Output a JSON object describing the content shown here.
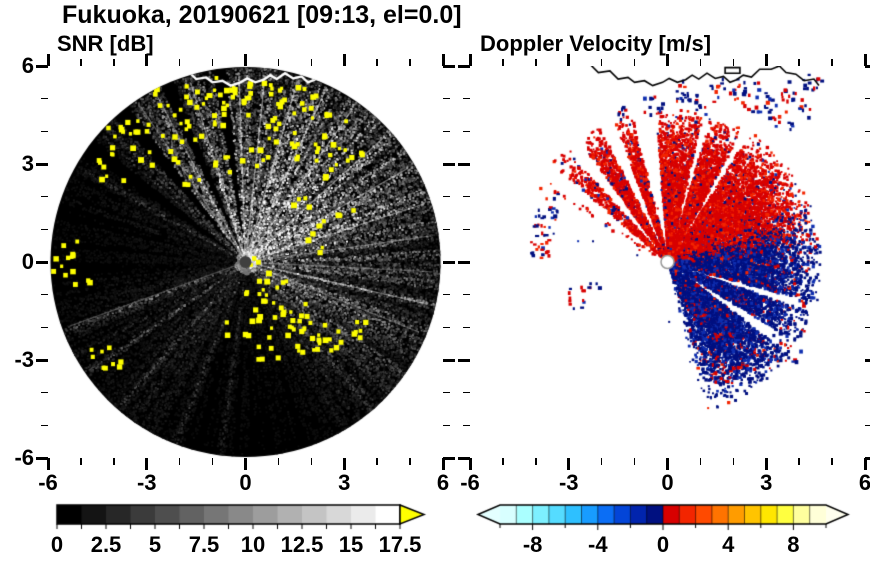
{
  "title": "Fukuoka, 20190621 [09:13, el=0.0]",
  "panels": {
    "snr": {
      "label": "SNR [dB]"
    },
    "velocity": {
      "label": "Doppler Velocity [m/s]"
    }
  },
  "axes": {
    "xlim": [
      -6,
      6
    ],
    "ylim": [
      -6,
      6
    ],
    "xticks": [
      -6,
      -3,
      0,
      3,
      6
    ],
    "yticks": [
      6,
      3,
      0,
      -3,
      -6
    ],
    "minor_step": 1
  },
  "colorbars": {
    "snr": {
      "min": 0,
      "max": 17.5,
      "step": 1.25,
      "tick_values": [
        0,
        2.5,
        5,
        7.5,
        10,
        12.5,
        15,
        17.5
      ],
      "tick_labels": [
        "0",
        "2.5",
        "5",
        "7.5",
        "10",
        "12.5",
        "15",
        "17.5"
      ],
      "color_start": "#000000",
      "color_end": "#ffffff",
      "over_color": "#ffff00"
    },
    "velocity": {
      "min": -10,
      "max": 10,
      "step": 1,
      "tick_values": [
        -8,
        -4,
        0,
        4,
        8
      ],
      "tick_labels": [
        "-8",
        "-4",
        "0",
        "4",
        "8"
      ],
      "colors": [
        "#d8ffff",
        "#aaffff",
        "#7df0ff",
        "#55dcff",
        "#2ec0ff",
        "#189cff",
        "#0b6ef5",
        "#0345d8",
        "#0124ad",
        "#001080",
        "#d80000",
        "#f32500",
        "#ff4a00",
        "#ff7300",
        "#ff9c00",
        "#ffc400",
        "#ffe600",
        "#ffff40",
        "#ffff9e",
        "#ffffd8"
      ],
      "under_color": "#e4ffff",
      "over_color": "#ffffee"
    }
  },
  "coastline": {
    "points": [
      [
        -2.35,
        6.05
      ],
      [
        -2.1,
        5.8
      ],
      [
        -1.75,
        5.85
      ],
      [
        -1.5,
        5.6
      ],
      [
        -1.2,
        5.65
      ],
      [
        -1.0,
        5.5
      ],
      [
        -0.7,
        5.55
      ],
      [
        -0.45,
        5.4
      ],
      [
        -0.15,
        5.5
      ],
      [
        0.05,
        5.62
      ],
      [
        0.3,
        5.5
      ],
      [
        0.55,
        5.58
      ],
      [
        0.75,
        5.72
      ],
      [
        0.95,
        5.6
      ],
      [
        1.2,
        5.78
      ],
      [
        1.45,
        5.62
      ],
      [
        1.7,
        5.68
      ],
      [
        1.9,
        5.5
      ],
      [
        2.1,
        5.58
      ],
      [
        2.3,
        5.72
      ],
      [
        2.55,
        5.66
      ],
      [
        2.8,
        5.9
      ],
      [
        3.15,
        5.9
      ],
      [
        3.4,
        6.0
      ],
      [
        3.6,
        5.8
      ],
      [
        3.9,
        5.75
      ],
      [
        4.15,
        5.55
      ],
      [
        4.45,
        5.6
      ],
      [
        4.6,
        5.4
      ]
    ],
    "island": [
      [
        1.75,
        5.95
      ],
      [
        2.2,
        5.95
      ],
      [
        2.2,
        5.78
      ],
      [
        1.75,
        5.78
      ]
    ]
  },
  "chart_data": [
    {
      "type": "heatmap",
      "name": "snr",
      "title": "SNR [dB]",
      "units": "dB",
      "xlim": [
        -6,
        6
      ],
      "ylim": [
        -6,
        6
      ],
      "xticks": [
        -6,
        -3,
        0,
        3,
        6
      ],
      "yticks": [
        -6,
        -3,
        0,
        3,
        6
      ],
      "scale": {
        "min": 0,
        "max": 17.5,
        "label_interval": 2.5,
        "colormap": "black-to-white",
        "over_color": "#ffff00"
      },
      "radar_disk": {
        "center": [
          0,
          0
        ],
        "radius": 6,
        "background": "#000000"
      },
      "base": 0.045,
      "fan": [
        {
          "center": 75,
          "width": 34,
          "amp": 0.52
        },
        {
          "center": 22,
          "width": 16,
          "amp": 0.38
        },
        {
          "center": -22,
          "width": 17,
          "amp": 0.3
        },
        {
          "center": 120,
          "width": 11,
          "amp": 0.24
        },
        {
          "center": 48,
          "width": 10,
          "amp": 0.25
        },
        {
          "center": 205,
          "width": 9,
          "amp": 0.1
        },
        {
          "center": 233,
          "width": 8,
          "amp": 0.08
        },
        {
          "center": -45,
          "width": 10,
          "amp": 0.12
        }
      ],
      "beams": [
        {
          "a": 347,
          "i": 0.8
        },
        {
          "a": 338,
          "i": 0.55
        },
        {
          "a": 357,
          "i": 0.5
        },
        {
          "a": 8,
          "i": 0.6
        },
        {
          "a": 18,
          "i": 0.75
        },
        {
          "a": 30,
          "i": 0.85
        },
        {
          "a": 42,
          "i": 0.9
        },
        {
          "a": 55,
          "i": 0.95
        },
        {
          "a": 65,
          "i": 1.0
        },
        {
          "a": 74,
          "i": 1.0
        },
        {
          "a": 84,
          "i": 0.95
        },
        {
          "a": 92,
          "i": 0.85
        },
        {
          "a": 107,
          "i": 0.8
        },
        {
          "a": 118,
          "i": 0.65
        },
        {
          "a": 124,
          "i": 0.6
        },
        {
          "a": 150,
          "i": 0.3
        },
        {
          "a": 200,
          "i": 0.5
        },
        {
          "a": 214,
          "i": 0.42
        },
        {
          "a": 228,
          "i": 0.38
        },
        {
          "a": 248,
          "i": 0.3
        },
        {
          "a": 262,
          "i": 0.22
        },
        {
          "a": 318,
          "i": 0.35
        },
        {
          "a": 305,
          "i": 0.25
        }
      ],
      "gaps": [
        [
          96,
          99
        ],
        [
          112,
          115
        ],
        [
          127,
          131
        ],
        [
          141,
          145
        ]
      ],
      "strong_echo_clusters": [
        [
          -3.7,
          3.8,
          9,
          0.3
        ],
        [
          -3.35,
          4.4,
          7,
          0.25
        ],
        [
          -4.2,
          2.95,
          6,
          0.25
        ],
        [
          -2.7,
          3.5,
          8,
          0.3
        ],
        [
          -2.25,
          4.9,
          8,
          0.3
        ],
        [
          -1.9,
          4.15,
          7,
          0.25
        ],
        [
          -1.5,
          5.1,
          6,
          0.22
        ],
        [
          -1.05,
          4.6,
          7,
          0.25
        ],
        [
          -0.55,
          5.35,
          7,
          0.25
        ],
        [
          -0.15,
          4.95,
          8,
          0.3
        ],
        [
          0.3,
          5.3,
          6,
          0.25
        ],
        [
          0.75,
          4.5,
          7,
          0.25
        ],
        [
          1.3,
          5.05,
          8,
          0.3
        ],
        [
          1.9,
          4.75,
          7,
          0.3
        ],
        [
          2.5,
          4.15,
          8,
          0.3
        ],
        [
          3.0,
          3.6,
          7,
          0.3
        ],
        [
          1.05,
          3.65,
          6,
          0.25
        ],
        [
          0.2,
          3.25,
          5,
          0.2
        ],
        [
          -0.7,
          3.05,
          5,
          0.2
        ],
        [
          1.8,
          3.3,
          6,
          0.25
        ],
        [
          2.35,
          2.9,
          5,
          0.25
        ],
        [
          -1.6,
          2.6,
          4,
          0.2
        ],
        [
          1.7,
          1.85,
          4,
          0.2
        ],
        [
          2.3,
          1.25,
          4,
          0.2
        ],
        [
          2.05,
          0.6,
          3,
          0.15
        ],
        [
          2.95,
          1.7,
          3,
          0.15
        ],
        [
          0.35,
          -0.85,
          5,
          0.22
        ],
        [
          0.85,
          -1.25,
          6,
          0.25
        ],
        [
          1.45,
          -1.6,
          7,
          0.25
        ],
        [
          2.05,
          -1.9,
          8,
          0.28
        ],
        [
          2.6,
          -2.25,
          7,
          0.25
        ],
        [
          3.15,
          -2.05,
          6,
          0.22
        ],
        [
          1.05,
          -2.05,
          5,
          0.22
        ],
        [
          0.1,
          -1.5,
          4,
          0.2
        ],
        [
          -0.25,
          -2.1,
          4,
          0.2
        ],
        [
          0.6,
          -2.6,
          5,
          0.22
        ],
        [
          1.7,
          -2.45,
          4,
          0.2
        ],
        [
          2.3,
          -2.7,
          3,
          0.18
        ],
        [
          -5.55,
          -0.05,
          7,
          0.25
        ],
        [
          -5.2,
          0.4,
          4,
          0.2
        ],
        [
          -5.0,
          -0.6,
          3,
          0.18
        ],
        [
          -4.45,
          -2.85,
          5,
          0.22
        ],
        [
          -3.95,
          -3.25,
          4,
          0.2
        ],
        [
          0.35,
          0.1,
          3,
          0.12
        ],
        [
          0.55,
          -0.35,
          3,
          0.12
        ],
        [
          0.95,
          -0.6,
          3,
          0.12
        ]
      ],
      "description": "Radar PPI scan over Fukuoka: black disk of radius 6, gray echo fan strongest toward the north and east, narrow bright beams radiating from the center, and strong (> 17.5 dB, yellow) echoes scattered across the northern half, near the left rim and along a southeast arc."
    },
    {
      "type": "heatmap",
      "name": "doppler_velocity",
      "title": "Doppler Velocity [m/s]",
      "units": "m/s",
      "xlim": [
        -6,
        6
      ],
      "ylim": [
        -6,
        6
      ],
      "xticks": [
        -6,
        -3,
        0,
        3,
        6
      ],
      "yticks": [
        -6,
        -3,
        0,
        3,
        6
      ],
      "scale": {
        "min": -10,
        "max": 10,
        "label_interval": 4,
        "colormap": "cyan-blue-red-yellow"
      },
      "negative_color": "#001080",
      "positive_color": "#d80000",
      "echo_sector": {
        "angle_deg": [
          -78,
          150
        ],
        "r_core": 2.9,
        "r_max": 4.7
      },
      "gaps": [
        [
          95,
          104
        ],
        [
          111,
          117
        ],
        [
          126,
          132
        ],
        [
          140,
          146
        ],
        [
          -37,
          -32
        ],
        [
          -19,
          -15
        ],
        [
          58,
          61
        ],
        [
          74,
          77
        ]
      ],
      "blobs": [
        [
          -3.8,
          1.05,
          0.15,
          0.5,
          30,
          0.45
        ],
        [
          -3.45,
          1.8,
          0.12,
          0.2,
          10,
          0.6
        ],
        [
          -4.05,
          0.45,
          0.1,
          0.12,
          6,
          0.3
        ],
        [
          -2.75,
          -1.05,
          0.2,
          0.18,
          12,
          0.55
        ],
        [
          -2.3,
          -0.75,
          0.1,
          0.1,
          5,
          0.2
        ],
        [
          1.35,
          -3.3,
          0.3,
          0.22,
          20,
          0.7
        ],
        [
          2.15,
          -3.05,
          0.15,
          0.12,
          8,
          0.55
        ],
        [
          3.6,
          -2.5,
          0.25,
          0.3,
          22,
          0.25
        ],
        [
          4.1,
          -1.2,
          0.12,
          0.12,
          6,
          0.4
        ],
        [
          -1.35,
          4.6,
          0.12,
          0.12,
          7,
          0.2
        ],
        [
          -0.55,
          4.85,
          0.18,
          0.15,
          11,
          0.25
        ],
        [
          0.35,
          5.25,
          0.22,
          0.18,
          15,
          0.3
        ],
        [
          1.15,
          5.0,
          0.2,
          0.25,
          15,
          0.35
        ],
        [
          1.9,
          5.35,
          0.25,
          0.2,
          17,
          0.3
        ],
        [
          2.6,
          5.05,
          0.22,
          0.25,
          17,
          0.3
        ],
        [
          3.25,
          4.8,
          0.2,
          0.2,
          13,
          0.35
        ],
        [
          3.85,
          5.3,
          0.22,
          0.18,
          13,
          0.25
        ],
        [
          4.35,
          5.55,
          0.15,
          0.12,
          9,
          0.3
        ],
        [
          3.5,
          4.3,
          0.15,
          0.15,
          9,
          0.4
        ],
        [
          4.2,
          4.7,
          0.12,
          0.12,
          7,
          0.3
        ]
      ],
      "description": "Doppler velocity field on white background: red (positive) echoes fan out to the north and northeast of the radar, dark blue (negative) echoes to the east-southeast, with narrow white beam-blockage wedges, detached red/blue patches along the northern coastline, to the west and to the south."
    }
  ]
}
